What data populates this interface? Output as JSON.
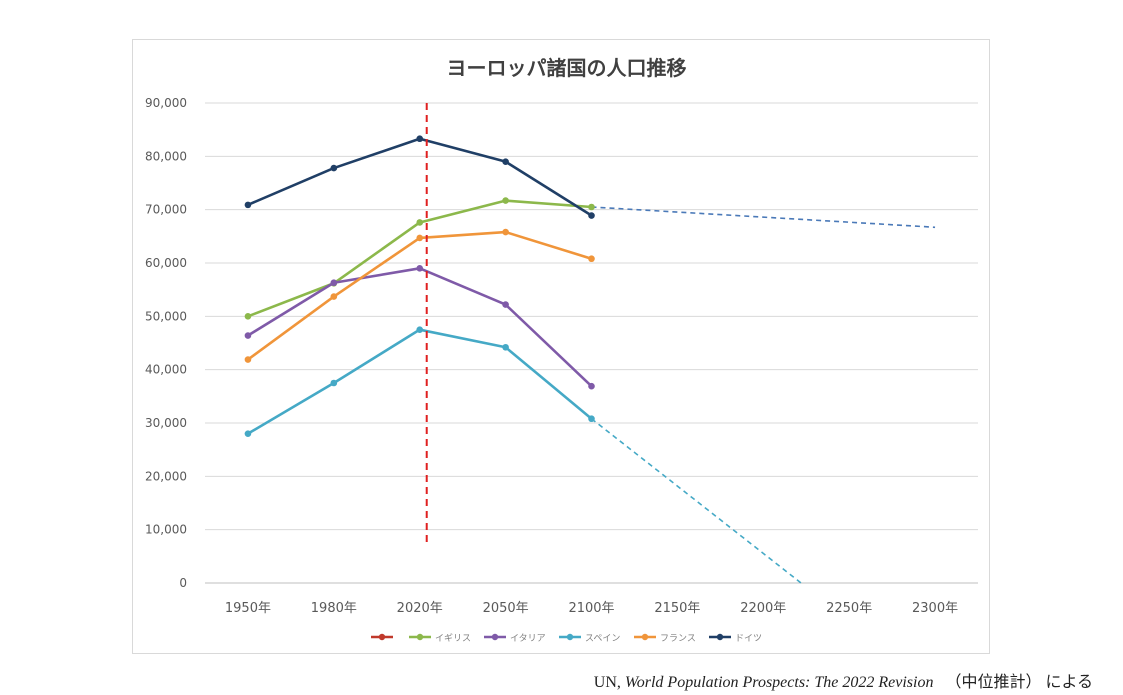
{
  "chart_data": {
    "type": "line",
    "title": "ヨーロッパ諸国の人口推移",
    "categories": [
      "1950年",
      "1980年",
      "2020年",
      "2050年",
      "2100年",
      "2150年",
      "2200年",
      "2250年",
      "2300年"
    ],
    "y_ticks": [
      "0",
      "10,000",
      "20,000",
      "30,000",
      "40,000",
      "50,000",
      "60,000",
      "70,000",
      "80,000",
      "90,000"
    ],
    "ylim": [
      0,
      90000
    ],
    "grid": true,
    "legend_position": "bottom",
    "marker_line": {
      "category": "2020年",
      "color": "#e02020",
      "style": "dashed"
    },
    "series": [
      {
        "name": "",
        "color": "#c0392b",
        "values": [
          null,
          null,
          null,
          null,
          null,
          null,
          null,
          null,
          null
        ]
      },
      {
        "name": "イギリス",
        "color": "#8cb84b",
        "values": [
          50000,
          56200,
          67600,
          71700,
          70500,
          null,
          null,
          null,
          null
        ]
      },
      {
        "name": "イタリア",
        "color": "#7f5aa8",
        "values": [
          46400,
          56300,
          59000,
          52200,
          36900,
          null,
          null,
          null,
          null
        ]
      },
      {
        "name": "スペイン",
        "color": "#45a9c6",
        "values": [
          28000,
          37500,
          47500,
          44200,
          30800,
          null,
          null,
          null,
          null
        ]
      },
      {
        "name": "フランス",
        "color": "#f0953a",
        "values": [
          41900,
          53700,
          64700,
          65800,
          60800,
          null,
          null,
          null,
          null
        ]
      },
      {
        "name": "ドイツ",
        "color": "#203f66",
        "values": [
          70900,
          77800,
          83300,
          79000,
          68900,
          null,
          null,
          null,
          null
        ]
      }
    ],
    "projections": [
      {
        "color": "#4a79b8",
        "points": [
          [
            "2100年",
            70500
          ],
          [
            "2300年",
            66700
          ]
        ]
      },
      {
        "color": "#45a9c6",
        "points": [
          [
            "2100年",
            30800
          ],
          [
            "2222年",
            0
          ]
        ]
      }
    ]
  },
  "source": {
    "prefix": "UN, ",
    "publication": "World Population Prospects: The 2022 Revision",
    "suffix": "（中位推計）  による"
  }
}
